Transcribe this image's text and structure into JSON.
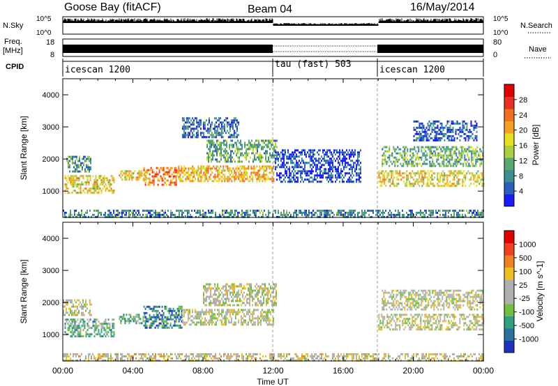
{
  "header": {
    "site": "Goose Bay (fitACF)",
    "beam": "Beam 04",
    "date": "16/May/2014"
  },
  "left_labels": {
    "nsky": "N.Sky",
    "freq_line1": "Freq.",
    "freq_line2": "[MHz]",
    "cpid": "CPID"
  },
  "right_labels": {
    "nsearch": "N.Search",
    "nave": "Nave"
  },
  "noise_panel": {
    "left_ticks": [
      "10^5",
      "10^0"
    ],
    "right_ticks": [
      "10^5",
      "10^0"
    ]
  },
  "freq_panel": {
    "left_ticks": [
      "18",
      "8"
    ],
    "right_ticks": [
      "80",
      "0"
    ]
  },
  "cpid_segments": [
    {
      "label": "icescan 1200",
      "start_hour": 0
    },
    {
      "label": "tau (fast) 503",
      "start_hour": 12
    },
    {
      "label": "icescan 1200",
      "start_hour": 18
    }
  ],
  "x_axis": {
    "label": "Time UT",
    "ticks": [
      "00:00",
      "04:00",
      "08:00",
      "12:00",
      "16:00",
      "20:00",
      "00:00"
    ],
    "range_hours": [
      0,
      24
    ]
  },
  "y_axis": {
    "label": "Slant Range [km]",
    "ticks": [
      "1000",
      "2000",
      "3000",
      "4000"
    ],
    "range_km": [
      180,
      4500
    ]
  },
  "chart_data": [
    {
      "type": "heatmap",
      "title": "",
      "xlabel": "",
      "ylabel": "Slant Range [km]",
      "xlim": [
        0,
        24
      ],
      "ylim": [
        180,
        4500
      ],
      "colorbar": {
        "label": "Power [dB]",
        "ticks": [
          "4",
          "8",
          "12",
          "16",
          "20",
          "24",
          "28"
        ],
        "colors": [
          "#1a1aff",
          "#2a5fc0",
          "#3f8f8f",
          "#5aa870",
          "#a8d040",
          "#e6e020",
          "#f5a020",
          "#f07020",
          "#e83020",
          "#e00000"
        ],
        "range": [
          0,
          30
        ]
      },
      "regions": [
        {
          "t0": 0.1,
          "t1": 2.9,
          "r0": 950,
          "r1": 1500,
          "level": 0.55
        },
        {
          "t0": 0.2,
          "t1": 1.6,
          "r0": 1600,
          "r1": 2100,
          "level": 0.3
        },
        {
          "t0": 3.2,
          "t1": 4.8,
          "r0": 1350,
          "r1": 1650,
          "level": 0.55
        },
        {
          "t0": 4.6,
          "t1": 6.5,
          "r0": 1200,
          "r1": 1750,
          "level": 0.72
        },
        {
          "t0": 6.5,
          "t1": 12.0,
          "r0": 1300,
          "r1": 1800,
          "level": 0.62
        },
        {
          "t0": 8.2,
          "t1": 12.2,
          "r0": 1900,
          "r1": 2600,
          "level": 0.35
        },
        {
          "t0": 6.8,
          "t1": 10.0,
          "r0": 2700,
          "r1": 3300,
          "level": 0.2
        },
        {
          "t0": 12.1,
          "t1": 17.0,
          "r0": 1300,
          "r1": 2300,
          "level": 0.12
        },
        {
          "t0": 18.0,
          "t1": 24.0,
          "r0": 1150,
          "r1": 1650,
          "level": 0.55
        },
        {
          "t0": 18.2,
          "t1": 24.0,
          "r0": 1750,
          "r1": 2400,
          "level": 0.35
        },
        {
          "t0": 20.0,
          "t1": 23.6,
          "r0": 2600,
          "r1": 3200,
          "level": 0.15
        },
        {
          "t0": 0.0,
          "t1": 24.0,
          "r0": 200,
          "r1": 420,
          "level": 0.25
        }
      ]
    },
    {
      "type": "heatmap",
      "title": "",
      "xlabel": "Time UT",
      "ylabel": "Slant Range [km]",
      "xlim": [
        0,
        24
      ],
      "ylim": [
        180,
        4500
      ],
      "colorbar": {
        "label": "Velocity [m s^-1]",
        "ticks": [
          "1000",
          "500",
          "100",
          "25",
          "-25",
          "-100",
          "-500",
          "-1000"
        ],
        "colors": [
          "#2030c0",
          "#2a70a0",
          "#30a080",
          "#70c040",
          "#b0b0b0",
          "#b0b0b0",
          "#f0c020",
          "#f08020",
          "#f04020",
          "#e00000"
        ],
        "range": [
          -1000,
          1000
        ]
      },
      "regions": [
        {
          "t0": 0.1,
          "t1": 2.9,
          "r0": 950,
          "r1": 1500,
          "level": 0.35
        },
        {
          "t0": 0.0,
          "t1": 1.6,
          "r0": 1600,
          "r1": 2100,
          "level": 0.5
        },
        {
          "t0": 3.2,
          "t1": 4.8,
          "r0": 1350,
          "r1": 1650,
          "level": 0.3
        },
        {
          "t0": 4.6,
          "t1": 6.8,
          "r0": 1200,
          "r1": 1900,
          "level": 0.2
        },
        {
          "t0": 6.8,
          "t1": 12.0,
          "r0": 1300,
          "r1": 1800,
          "level": 0.5
        },
        {
          "t0": 8.0,
          "t1": 12.2,
          "r0": 1900,
          "r1": 2600,
          "level": 0.5
        },
        {
          "t0": 18.0,
          "t1": 24.0,
          "r0": 1150,
          "r1": 1650,
          "level": 0.5
        },
        {
          "t0": 18.2,
          "t1": 24.0,
          "r0": 1750,
          "r1": 2400,
          "level": 0.5
        },
        {
          "t0": 0.0,
          "t1": 24.0,
          "r0": 200,
          "r1": 420,
          "level": 0.55
        }
      ]
    }
  ]
}
